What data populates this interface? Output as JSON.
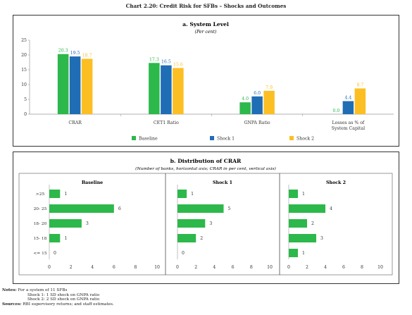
{
  "title": "Chart 2.20: Credit Risk for SFBs – Shocks and Outcomes",
  "colors": {
    "baseline": "#2db84b",
    "shock1": "#1f6db5",
    "shock2": "#fbbf24",
    "bar": "#2db84b"
  },
  "chart_data": [
    {
      "type": "bar",
      "title": "a. System Level",
      "subtitle": "(Per cent)",
      "categories": [
        "CRAR",
        "CET1 Ratio",
        "GNPA Ratio",
        "Losses as % of System Capital"
      ],
      "category_lines": [
        [
          "CRAR"
        ],
        [
          "CET1 Ratio"
        ],
        [
          "GNPA Ratio"
        ],
        [
          "Losses as % of",
          "System Capital"
        ]
      ],
      "series": [
        {
          "name": "Baseline",
          "values": [
            20.3,
            17.3,
            4.0,
            0.0
          ],
          "labels": [
            "20.3",
            "17.3",
            "4.0",
            "0.0"
          ]
        },
        {
          "name": "Shock 1",
          "values": [
            19.5,
            16.5,
            6.0,
            4.4
          ],
          "labels": [
            "19.5",
            "16.5",
            "6.0",
            "4.4"
          ]
        },
        {
          "name": "Shock 2",
          "values": [
            18.7,
            15.6,
            7.9,
            8.7
          ],
          "labels": [
            "18.7",
            "15.6",
            "7.9",
            "8.7"
          ]
        }
      ],
      "ylim": [
        0,
        25
      ],
      "yticks": [
        "0",
        "5",
        "10",
        "15",
        "20",
        "25"
      ],
      "legend": "bottom"
    },
    {
      "type": "bar",
      "orientation": "horizontal",
      "title": "b. Distribution of CRAR",
      "subtitle": "(Number of banks, horizontal axis; CRAR in per cent, vertical axis)",
      "categories": [
        ">25",
        "20- 25",
        "18- 20",
        "15- 18",
        "<= 15"
      ],
      "xlim": [
        0,
        10
      ],
      "xticks": [
        "0",
        "2",
        "4",
        "6",
        "8",
        "10"
      ],
      "panels": [
        {
          "name": "Baseline",
          "values": [
            1,
            6,
            3,
            1,
            0
          ],
          "labels": [
            "1",
            "6",
            "3",
            "1",
            "0"
          ]
        },
        {
          "name": "Shock 1",
          "values": [
            1,
            5,
            3,
            2,
            0
          ],
          "labels": [
            "1",
            "5",
            "3",
            "2",
            "0"
          ]
        },
        {
          "name": "Shock 2",
          "values": [
            1,
            4,
            2,
            3,
            1
          ],
          "labels": [
            "1",
            "4",
            "2",
            "3",
            "1"
          ]
        }
      ]
    }
  ],
  "notes": {
    "notes_label": "Notes:",
    "line1": "For a system of 11 SFBs",
    "line2": "Shock 1: 1 SD shock on GNPA ratio",
    "line3": "Shock 2: 2 SD shock on GNPA ratio",
    "sources_label": "Sources:",
    "sources": "RBI supervisory returns; and staff estimates."
  }
}
